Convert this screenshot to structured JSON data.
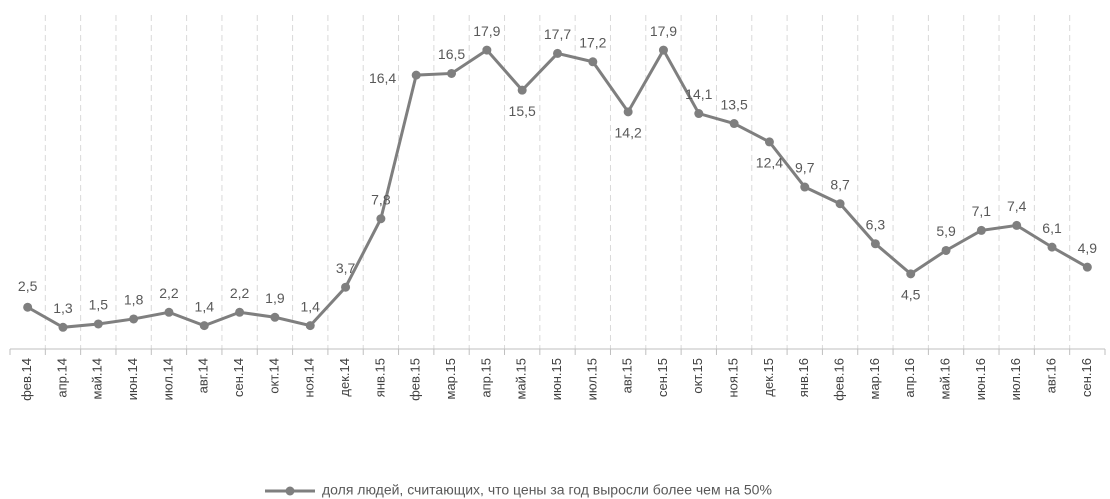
{
  "chart_data": {
    "type": "line",
    "categories": [
      "фев.14",
      "апр.14",
      "май.14",
      "июн.14",
      "июл.14",
      "авг.14",
      "сен.14",
      "окт.14",
      "ноя.14",
      "дек.14",
      "янв.15",
      "фев.15",
      "мар.15",
      "апр.15",
      "май.15",
      "июн.15",
      "июл.15",
      "авг.15",
      "сен.15",
      "окт.15",
      "ноя.15",
      "дек.15",
      "янв.16",
      "фев.16",
      "мар.16",
      "апр.16",
      "май.16",
      "июн.16",
      "июл.16",
      "авг.16",
      "сен.16"
    ],
    "series": [
      {
        "name": "доля людей, считающих, что цены за год выросли более чем на 50%",
        "color": "#7f7f7f",
        "values": [
          2.5,
          1.3,
          1.5,
          1.8,
          2.2,
          1.4,
          2.2,
          1.9,
          1.4,
          3.7,
          7.8,
          16.4,
          16.5,
          17.9,
          15.5,
          17.7,
          17.2,
          14.2,
          17.9,
          14.1,
          13.5,
          12.4,
          9.7,
          8.7,
          6.3,
          4.5,
          5.9,
          7.1,
          7.4,
          6.1,
          4.9
        ],
        "value_labels": [
          "2,5",
          "1,3",
          "1,5",
          "1,8",
          "2,2",
          "1,4",
          "2,2",
          "1,9",
          "1,4",
          "3,7",
          "7,8",
          "16,4",
          "16,5",
          "17,9",
          "15,5",
          "17,7",
          "17,2",
          "14,2",
          "17,9",
          "14,1",
          "13,5",
          "12,4",
          "9,7",
          "8,7",
          "6,3",
          "4,5",
          "5,9",
          "7,1",
          "7,4",
          "6,1",
          "4,9"
        ]
      }
    ],
    "grid": true
  }
}
